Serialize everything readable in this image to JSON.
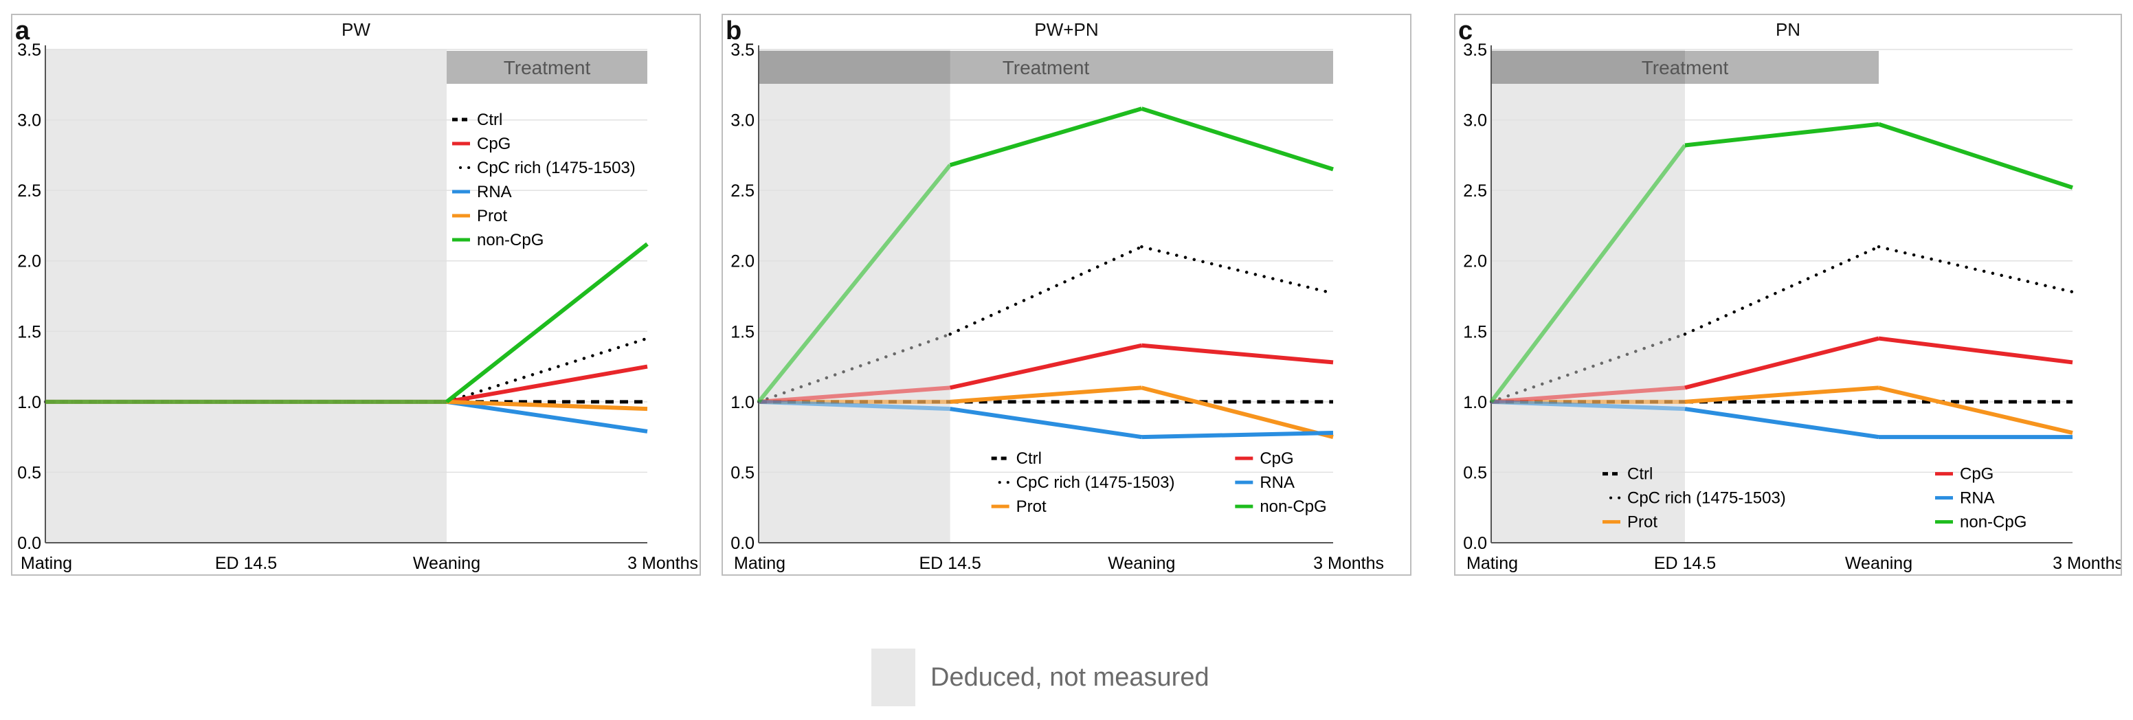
{
  "colors": {
    "ctrl": "#000000",
    "cpg": "#e8262a",
    "cpc_rich": "#000000",
    "rna": "#2a8ee0",
    "prot": "#f7941d",
    "non_cpg": "#1ebc1e",
    "deduced_region": "#e8e8e8",
    "treatment_band": "#b5b5b5",
    "grid": "#e0e0e0"
  },
  "caption": {
    "label": "Deduced, not measured"
  },
  "chart_data": [
    {
      "panel": "a",
      "title": "PW",
      "type": "line",
      "categories": [
        "Mating",
        "ED 14.5",
        "Weaning",
        "3 Months"
      ],
      "ylim": [
        0,
        3.5
      ],
      "yticks": [
        "0.0",
        "0.5",
        "1.0",
        "1.5",
        "2.0",
        "2.5",
        "3.0",
        "3.5"
      ],
      "treatment": {
        "label": "Treatment",
        "from": 2,
        "to": 3
      },
      "deduced": {
        "from": 0,
        "to": 2
      },
      "series": [
        {
          "name": "Ctrl",
          "style": "dash",
          "color": "#000000",
          "values": [
            1.0,
            1.0,
            1.0,
            1.0
          ]
        },
        {
          "name": "CpG",
          "style": "solid",
          "color": "#e8262a",
          "values": [
            1.0,
            1.0,
            1.0,
            1.25
          ]
        },
        {
          "name": "CpC rich (1475-1503)",
          "style": "dot",
          "color": "#000000",
          "values": [
            1.0,
            1.0,
            1.0,
            1.45
          ]
        },
        {
          "name": "RNA",
          "style": "solid",
          "color": "#2a8ee0",
          "values": [
            1.0,
            1.0,
            1.0,
            0.79
          ]
        },
        {
          "name": "Prot",
          "style": "solid",
          "color": "#f7941d",
          "values": [
            1.0,
            1.0,
            1.0,
            0.95
          ]
        },
        {
          "name": "non-CpG",
          "style": "solid",
          "color": "#1ebc1e",
          "values": [
            1.0,
            1.0,
            1.0,
            2.12
          ]
        }
      ],
      "legend": {
        "position": "top-right",
        "columns": 1
      }
    },
    {
      "panel": "b",
      "title": "PW+PN",
      "type": "line",
      "categories": [
        "Mating",
        "ED 14.5",
        "Weaning",
        "3 Months"
      ],
      "ylim": [
        0,
        3.5
      ],
      "yticks": [
        "0.0",
        "0.5",
        "1.0",
        "1.5",
        "2.0",
        "2.5",
        "3.0",
        "3.5"
      ],
      "treatment": {
        "label": "Treatment",
        "from": 0,
        "to": 3
      },
      "deduced": {
        "from": 0,
        "to": 1
      },
      "series": [
        {
          "name": "Ctrl",
          "style": "dash",
          "color": "#000000",
          "values": [
            1.0,
            1.0,
            1.0,
            1.0
          ]
        },
        {
          "name": "CpC rich (1475-1503)",
          "style": "dot",
          "color": "#000000",
          "values": [
            1.0,
            1.48,
            2.1,
            1.77
          ]
        },
        {
          "name": "Prot",
          "style": "solid",
          "color": "#f7941d",
          "values": [
            1.0,
            1.0,
            1.1,
            0.75
          ]
        },
        {
          "name": "CpG",
          "style": "solid",
          "color": "#e8262a",
          "values": [
            1.0,
            1.1,
            1.4,
            1.28
          ]
        },
        {
          "name": "RNA",
          "style": "solid",
          "color": "#2a8ee0",
          "values": [
            1.0,
            0.95,
            0.75,
            0.78
          ]
        },
        {
          "name": "non-CpG",
          "style": "solid",
          "color": "#1ebc1e",
          "values": [
            1.0,
            2.68,
            3.08,
            2.65
          ]
        }
      ],
      "legend": {
        "position": "bottom-right",
        "columns": 2
      }
    },
    {
      "panel": "c",
      "title": "PN",
      "type": "line",
      "categories": [
        "Mating",
        "ED 14.5",
        "Weaning",
        "3 Months"
      ],
      "ylim": [
        0,
        3.5
      ],
      "yticks": [
        "0.0",
        "0.5",
        "1.0",
        "1.5",
        "2.0",
        "2.5",
        "3.0",
        "3.5"
      ],
      "treatment": {
        "label": "Treatment",
        "from": 0,
        "to": 2
      },
      "deduced": {
        "from": 0,
        "to": 1
      },
      "series": [
        {
          "name": "Ctrl",
          "style": "dash",
          "color": "#000000",
          "values": [
            1.0,
            1.0,
            1.0,
            1.0
          ]
        },
        {
          "name": "CpC rich (1475-1503)",
          "style": "dot",
          "color": "#000000",
          "values": [
            1.0,
            1.48,
            2.1,
            1.78
          ]
        },
        {
          "name": "Prot",
          "style": "solid",
          "color": "#f7941d",
          "values": [
            1.0,
            1.0,
            1.1,
            0.78
          ]
        },
        {
          "name": "CpG",
          "style": "solid",
          "color": "#e8262a",
          "values": [
            1.0,
            1.1,
            1.45,
            1.28
          ]
        },
        {
          "name": "RNA",
          "style": "solid",
          "color": "#2a8ee0",
          "values": [
            1.0,
            0.95,
            0.75,
            0.75
          ]
        },
        {
          "name": "non-CpG",
          "style": "solid",
          "color": "#1ebc1e",
          "values": [
            1.0,
            2.82,
            2.97,
            2.52
          ]
        }
      ],
      "legend": {
        "position": "bottom-right",
        "columns": 2
      }
    }
  ]
}
